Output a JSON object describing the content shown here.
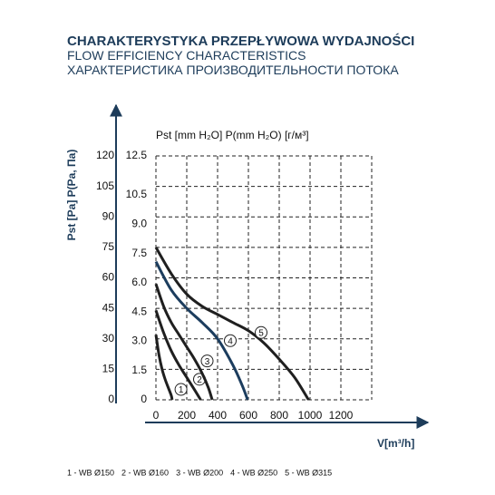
{
  "chart_data": {
    "type": "line",
    "title": [
      "CHARAKTERYSTYKA PRZEPŁYWOWA WYDAJNOŚCI",
      "FLOW EFFICIENCY CHARACTERISTICS",
      "ХАРАКТЕРИСТИКА ПРОИЗВОДИТЕЛЬНОСТИ ПОТОКА"
    ],
    "y_label": "Pst [Pa] P(Pa, Па)",
    "y2_label": "Pst [mm H₂O] P(mm H₂O) [г/м³]",
    "x_label": "V[m³/h]",
    "xlim": [
      0,
      1400
    ],
    "xticks": [
      0,
      200,
      400,
      600,
      800,
      1000,
      1200
    ],
    "ylim": [
      0,
      120
    ],
    "yticks": [
      0,
      15,
      30,
      45,
      60,
      75,
      90,
      105,
      120
    ],
    "y2lim": [
      0,
      12.5
    ],
    "y2ticks": [
      0,
      1.5,
      {
        "value": 3,
        "label": "3.0"
      },
      4.5,
      {
        "value": 6,
        "label": "6.0"
      },
      7.5,
      {
        "value": 9,
        "label": "9.0"
      },
      10.5,
      12.5
    ],
    "grid": true,
    "series": [
      {
        "name": "1 - WB Ø150",
        "label": "1",
        "color": "#1f1f1f",
        "x": [
          0,
          20,
          40,
          60,
          80,
          100,
          105
        ],
        "values": [
          32,
          22,
          15,
          10,
          6,
          2,
          0
        ]
      },
      {
        "name": "2 - WB Ø160",
        "label": "2",
        "color": "#1f1f1f",
        "x": [
          0,
          50,
          100,
          150,
          200,
          250,
          290
        ],
        "values": [
          44,
          33,
          24,
          17,
          11,
          5,
          0
        ]
      },
      {
        "name": "3 - WB Ø200",
        "label": "3",
        "color": "#1f1f1f",
        "x": [
          0,
          50,
          100,
          150,
          200,
          250,
          300,
          340,
          365
        ],
        "values": [
          57,
          46,
          38,
          32,
          26,
          20,
          13,
          6,
          0
        ]
      },
      {
        "name": "4 - WB Ø250",
        "label": "4",
        "color": "#1c3d5e",
        "x": [
          0,
          100,
          200,
          300,
          400,
          500,
          560,
          595
        ],
        "values": [
          68,
          54,
          45,
          38,
          30,
          17,
          7,
          0
        ]
      },
      {
        "name": "5 - WB Ø315",
        "label": "5",
        "color": "#1f1f1f",
        "x": [
          0,
          100,
          200,
          300,
          400,
          500,
          600,
          700,
          800,
          900,
          990
        ],
        "values": [
          75,
          62,
          52,
          46,
          42,
          38,
          34,
          28,
          20,
          11,
          0
        ]
      }
    ]
  }
}
